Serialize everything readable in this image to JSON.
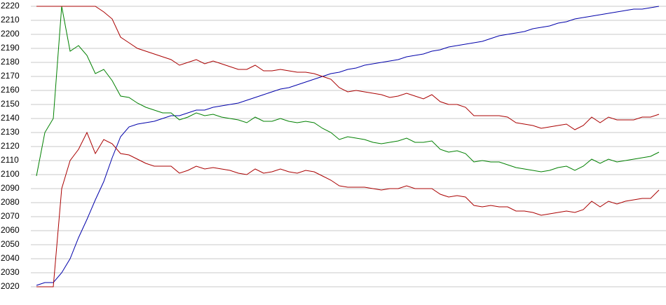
{
  "chart_data": {
    "type": "line",
    "ylim": [
      2020,
      2220
    ],
    "yticks": [
      2020,
      2030,
      2040,
      2050,
      2060,
      2070,
      2080,
      2090,
      2100,
      2110,
      2120,
      2130,
      2140,
      2150,
      2160,
      2170,
      2180,
      2190,
      2200,
      2210,
      2220
    ],
    "grid": true,
    "series": [
      {
        "color": "#0000aa",
        "values": [
          2021,
          2023,
          2023,
          2030,
          2040,
          2055,
          2068,
          2082,
          2095,
          2112,
          2127,
          2134,
          2136,
          2137,
          2138,
          2140,
          2142,
          2142,
          2144,
          2146,
          2146,
          2148,
          2149,
          2150,
          2151,
          2153,
          2155,
          2157,
          2159,
          2161,
          2162,
          2164,
          2166,
          2168,
          2170,
          2172,
          2173,
          2175,
          2176,
          2178,
          2179,
          2180,
          2181,
          2182,
          2184,
          2185,
          2186,
          2188,
          2189,
          2191,
          2192,
          2193,
          2194,
          2195,
          2197,
          2199,
          2200,
          2201,
          2202,
          2204,
          2205,
          2206,
          2208,
          2209,
          2211,
          2212,
          2213,
          2214,
          2215,
          2216,
          2217,
          2218,
          2218,
          2219,
          2220
        ]
      },
      {
        "color": "#008000",
        "values": [
          2099,
          2130,
          2140,
          2220,
          2188,
          2192,
          2185,
          2172,
          2175,
          2167,
          2156,
          2155,
          2151,
          2148,
          2146,
          2144,
          2144,
          2139,
          2141,
          2144,
          2142,
          2143,
          2141,
          2140,
          2139,
          2137,
          2141,
          2138,
          2138,
          2140,
          2138,
          2137,
          2138,
          2137,
          2133,
          2130,
          2125,
          2127,
          2126,
          2125,
          2123,
          2122,
          2123,
          2124,
          2126,
          2123,
          2123,
          2124,
          2118,
          2116,
          2117,
          2115,
          2109,
          2110,
          2109,
          2109,
          2107,
          2105,
          2104,
          2103,
          2102,
          2103,
          2105,
          2106,
          2103,
          2106,
          2111,
          2108,
          2111,
          2109,
          2110,
          2111,
          2112,
          2113,
          2116
        ]
      },
      {
        "color": "#aa0000",
        "values": [
          2220,
          2220,
          2220,
          2220,
          2220,
          2220,
          2220,
          2220,
          2216,
          2211,
          2198,
          2194,
          2190,
          2188,
          2186,
          2184,
          2182,
          2178,
          2180,
          2182,
          2179,
          2181,
          2179,
          2177,
          2175,
          2175,
          2178,
          2174,
          2174,
          2175,
          2174,
          2173,
          2173,
          2172,
          2170,
          2168,
          2162,
          2159,
          2160,
          2159,
          2158,
          2157,
          2155,
          2156,
          2158,
          2156,
          2154,
          2157,
          2152,
          2150,
          2150,
          2148,
          2142,
          2142,
          2142,
          2142,
          2141,
          2137,
          2136,
          2135,
          2133,
          2134,
          2135,
          2136,
          2132,
          2135,
          2141,
          2137,
          2141,
          2139,
          2139,
          2139,
          2141,
          2141,
          2143
        ]
      },
      {
        "color": "#aa0000",
        "values": [
          2020,
          2020,
          2020,
          2090,
          2110,
          2118,
          2130,
          2115,
          2125,
          2122,
          2115,
          2114,
          2111,
          2108,
          2106,
          2106,
          2106,
          2101,
          2103,
          2106,
          2104,
          2105,
          2104,
          2103,
          2101,
          2100,
          2104,
          2101,
          2102,
          2104,
          2102,
          2101,
          2103,
          2102,
          2099,
          2096,
          2092,
          2091,
          2091,
          2091,
          2090,
          2089,
          2090,
          2090,
          2092,
          2090,
          2090,
          2090,
          2086,
          2084,
          2085,
          2084,
          2078,
          2077,
          2078,
          2077,
          2077,
          2074,
          2074,
          2073,
          2071,
          2072,
          2073,
          2074,
          2073,
          2075,
          2081,
          2077,
          2081,
          2079,
          2081,
          2082,
          2083,
          2083,
          2089
        ]
      }
    ]
  }
}
